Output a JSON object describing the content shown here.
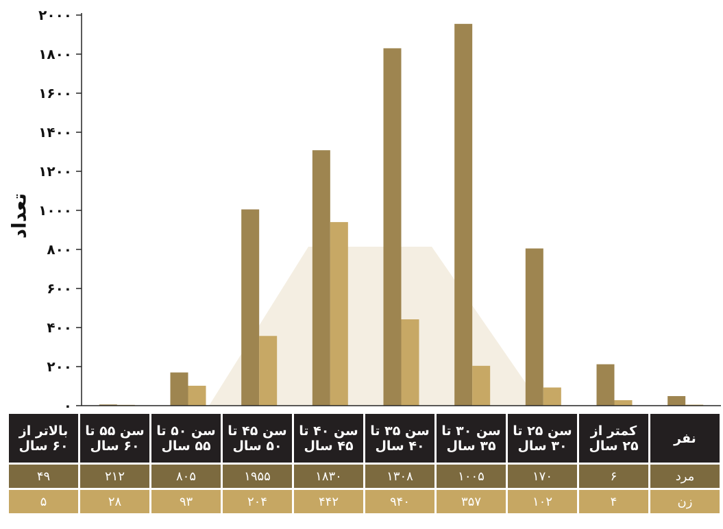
{
  "chart_data": {
    "type": "bar",
    "ylabel": "تعداد",
    "ylim": [
      0,
      2000
    ],
    "yticks": [
      "۰",
      "۲۰۰",
      "۴۰۰",
      "۶۰۰",
      "۸۰۰",
      "۱۰۰۰",
      "۱۲۰۰",
      "۱۴۰۰",
      "۱۶۰۰",
      "۱۸۰۰",
      "۲۰۰۰"
    ],
    "ytick_values": [
      0,
      200,
      400,
      600,
      800,
      1000,
      1200,
      1400,
      1600,
      1800,
      2000
    ],
    "categories": [
      "کمتر از ۲۵ سال",
      "سن ۲۵ تا ۳۰ سال",
      "سن ۳۰ تا ۳۵ سال",
      "سن ۳۵ تا ۴۰ سال",
      "سن ۴۰ تا ۴۵ سال",
      "سن ۴۵ تا ۵۰ سال",
      "سن ۵۰ تا ۵۵ سال",
      "سن ۵۵ تا ۶۰ سال",
      "بالاتر از ۶۰ سال"
    ],
    "series": [
      {
        "name": "مرد",
        "color": "#9e8550",
        "values": [
          6,
          170,
          1005,
          1308,
          1830,
          1955,
          805,
          212,
          49
        ]
      },
      {
        "name": "زن",
        "color": "#c7a865",
        "values": [
          4,
          102,
          357,
          940,
          442,
          204,
          93,
          28,
          5
        ]
      }
    ],
    "grid": false,
    "watermark_color": "#f4eee2"
  },
  "table": {
    "corner": "نفر",
    "headers": [
      [
        "کمتر از",
        "۲۵ سال"
      ],
      [
        "سن ۲۵ تا",
        "۳۰ سال"
      ],
      [
        "سن ۳۰ تا",
        "۳۵ سال"
      ],
      [
        "سن ۳۵ تا",
        "۴۰ سال"
      ],
      [
        "سن ۴۰ تا",
        "۴۵ سال"
      ],
      [
        "سن ۴۵ تا",
        "۵۰ سال"
      ],
      [
        "سن ۵۰ تا",
        "۵۵ سال"
      ],
      [
        "سن ۵۵ تا",
        "۶۰ سال"
      ],
      [
        "بالاتر از",
        "۶۰ سال"
      ]
    ],
    "men_label": "مرد",
    "men_values": [
      "۶",
      "۱۷۰",
      "۱۰۰۵",
      "۱۳۰۸",
      "۱۸۳۰",
      "۱۹۵۵",
      "۸۰۵",
      "۲۱۲",
      "۴۹"
    ],
    "women_label": "زن",
    "women_values": [
      "۴",
      "۱۰۲",
      "۳۵۷",
      "۹۴۰",
      "۴۴۲",
      "۲۰۴",
      "۹۳",
      "۲۸",
      "۵"
    ]
  }
}
